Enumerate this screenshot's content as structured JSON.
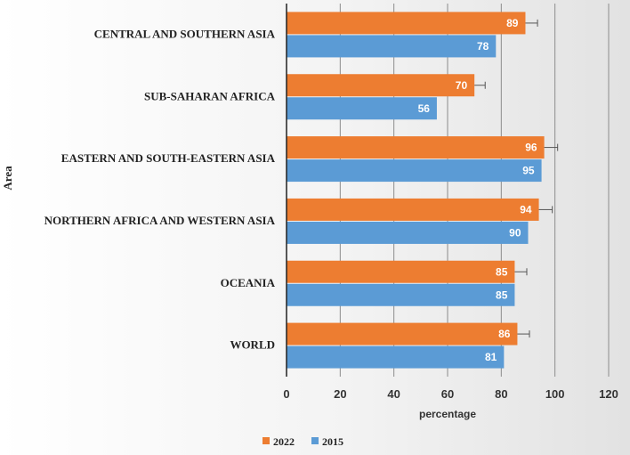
{
  "chart_data": {
    "type": "bar",
    "orientation": "horizontal",
    "categories": [
      "CENTRAL AND SOUTHERN ASIA",
      "SUB-SAHARAN AFRICA",
      "EASTERN AND SOUTH-EASTERN ASIA",
      "NORTHERN AFRICA AND WESTERN ASIA",
      "OCEANIA",
      "WORLD"
    ],
    "series": [
      {
        "name": "2022",
        "color": "#ED7D31",
        "values": [
          89,
          70,
          96,
          94,
          85,
          86
        ],
        "error": [
          4.5,
          4,
          5,
          5,
          4.5,
          4.5
        ]
      },
      {
        "name": "2015",
        "color": "#5B9BD5",
        "values": [
          78,
          56,
          95,
          90,
          85,
          81
        ]
      }
    ],
    "xlabel": "percentage",
    "ylabel": "Area",
    "xlim": [
      0,
      120
    ],
    "xticks": [
      0,
      20,
      40,
      60,
      80,
      100,
      120
    ],
    "grid": "vertical",
    "legend": "bottom-left"
  }
}
